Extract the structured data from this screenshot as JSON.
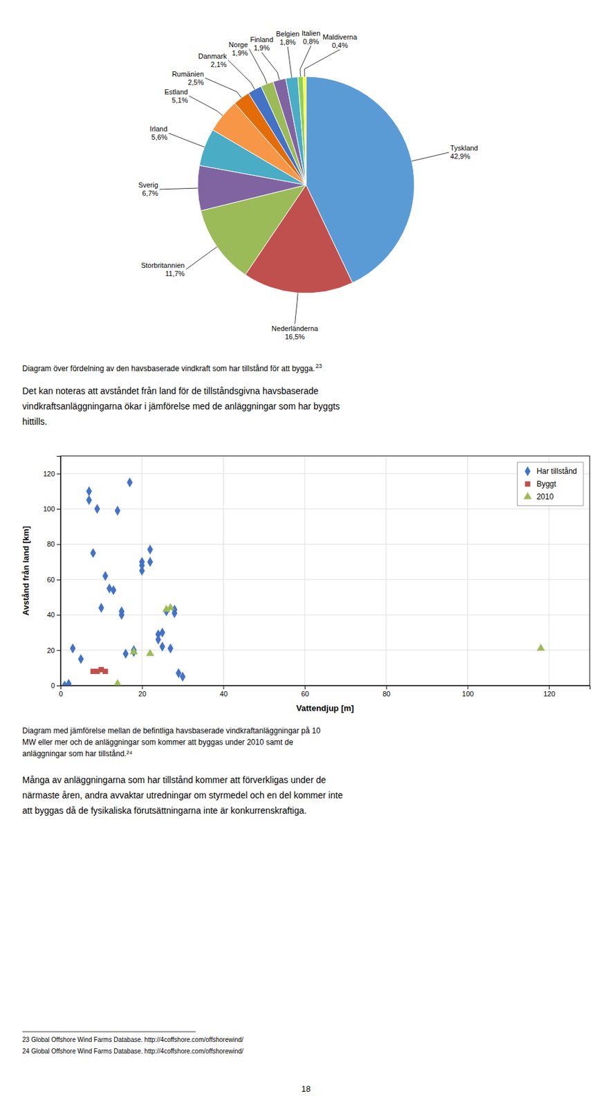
{
  "chart_data": [
    {
      "type": "pie",
      "categories": [
        "Tyskland",
        "Nederländerna",
        "Storbritannien",
        "Sverig",
        "Irland",
        "Estland",
        "Rumänien",
        "Danmark",
        "Norge",
        "Finland",
        "Belgien",
        "Italien",
        "Maldiverna"
      ],
      "values": [
        42.9,
        16.5,
        11.7,
        6.7,
        5.6,
        5.1,
        2.5,
        2.1,
        1.9,
        1.9,
        1.8,
        0.8,
        0.4
      ],
      "value_labels": [
        "42,9%",
        "16,5%",
        "11,7%",
        "6,7%",
        "5,6%",
        "5,1%",
        "2,5%",
        "2,1%",
        "1,9%",
        "1,9%",
        "1,8%",
        "0,8%",
        "0,4%"
      ],
      "colors": [
        "#5B9BD5",
        "#C0504D",
        "#9BBB59",
        "#8064A2",
        "#4BACC6",
        "#F79646",
        "#E36C09",
        "#4472C4",
        "#9BBB59",
        "#8064A2",
        "#4BACC6",
        "#92D050",
        "#FFFF00"
      ],
      "data_labels": true,
      "caption": "Diagram över fördelning av den havsbaserade vindkraft som har tillstånd för att bygga.",
      "footnote_ref": "23"
    },
    {
      "type": "scatter",
      "xlabel": "Vattendjup [m]",
      "ylabel": "Avstånd från land [km]",
      "xlim": [
        0,
        130
      ],
      "ylim": [
        0,
        130
      ],
      "xticks": [
        0,
        20,
        40,
        60,
        80,
        100,
        120
      ],
      "yticks": [
        0,
        20,
        40,
        60,
        80,
        100,
        120
      ],
      "grid": true,
      "legend": "upper right",
      "series": [
        {
          "name": "Har tillstånd",
          "color": "#4472C4",
          "marker": "diamond",
          "x": [
            1,
            2,
            3,
            5,
            7,
            7,
            8,
            9,
            10,
            11,
            12,
            13,
            14,
            15,
            15,
            16,
            17,
            18,
            18,
            20,
            20,
            20,
            22,
            22,
            24,
            24,
            25,
            25,
            26,
            27,
            28,
            28,
            29,
            30
          ],
          "values": [
            0,
            1,
            21,
            15,
            110,
            105,
            75,
            100,
            44,
            62,
            55,
            54,
            99,
            40,
            42,
            18,
            115,
            20,
            19,
            70,
            68,
            65,
            70,
            77,
            29,
            26,
            30,
            22,
            42,
            21,
            43,
            41,
            7,
            5
          ]
        },
        {
          "name": "Byggt",
          "color": "#C0504D",
          "marker": "square",
          "x": [
            8,
            9,
            10,
            11
          ],
          "values": [
            8,
            8,
            9,
            8
          ]
        },
        {
          "name": "2010",
          "color": "#9BBB59",
          "marker": "triangle",
          "x": [
            14,
            18,
            22,
            26,
            27,
            118
          ],
          "values": [
            1,
            19,
            18,
            43,
            44,
            21
          ]
        }
      ],
      "caption": [
        "Diagram med jämförelse mellan de befintliga havsbaserade vindkraftanläggningar på 10",
        "MW eller mer och de anläggningar som kommer att byggas under 2010 samt de",
        "anläggningar som har tillstånd.²⁴"
      ]
    }
  ],
  "paragraphs": [
    [
      "Det kan noteras att avståndet från land för de tillståndsgivna havsbaserade",
      "vindkraftsanläggningarna ökar i jämförelse med de anläggningar som har byggts",
      "hittills."
    ],
    [
      "Många av anläggningarna som har tillstånd kommer att förverkligas under de",
      "närmaste åren, andra avvaktar utredningar om styrmedel och en del kommer inte",
      "att byggas då de fysikaliska förutsättningarna inte är konkurrenskraftiga."
    ]
  ],
  "footnotes": [
    "23 Global Offshore Wind Farms Database. http://4coffshore.com/offshorewind/",
    "24 Global Offshore Wind Farms Database. http://4coffshore.com/offshorewind/"
  ],
  "page_number": "18"
}
